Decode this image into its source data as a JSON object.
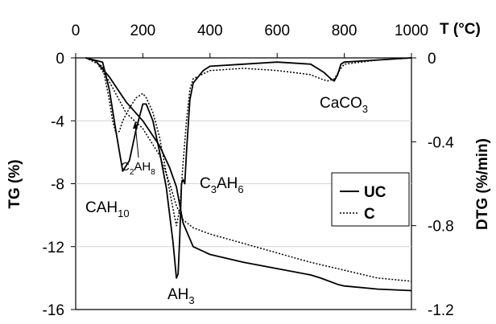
{
  "chart_data": {
    "type": "line",
    "title": "",
    "x_axis": {
      "label": "T (°C)",
      "range": [
        0,
        1000
      ],
      "ticks": [
        "0",
        "200",
        "400",
        "600",
        "800",
        "1000"
      ],
      "position": "top"
    },
    "y_left": {
      "label": "TG (%)",
      "range": [
        -16,
        0
      ],
      "ticks": [
        "0",
        "-4",
        "-8",
        "-12",
        "-16"
      ]
    },
    "y_right": {
      "label": "DTG (%/min)",
      "range": [
        -1.2,
        0
      ],
      "ticks": [
        "0",
        "-0.4",
        "-0.8",
        "-1.2"
      ]
    },
    "grid": "horizontal",
    "legend": {
      "placement": "right",
      "entries": [
        {
          "label": "UC",
          "style": "solid"
        },
        {
          "label": "C",
          "style": "dotted"
        }
      ]
    },
    "annotations": [
      {
        "base": "CAH",
        "sub": "10"
      },
      {
        "base": "C",
        "sub": "2",
        "mid": "AH",
        "sub2": "8"
      },
      {
        "base": "C",
        "sub": "3",
        "mid": "AH",
        "sub2": "6"
      },
      {
        "base": "AH",
        "sub": "3"
      },
      {
        "base": "CaCO",
        "sub": "3"
      }
    ],
    "series": [
      {
        "name": "UC",
        "kind": "TG",
        "axis": "left",
        "style": "solid",
        "x": [
          30,
          60,
          100,
          150,
          200,
          250,
          280,
          300,
          320,
          350,
          400,
          500,
          600,
          700,
          730,
          780,
          800,
          900,
          1000
        ],
        "y": [
          0,
          -0.2,
          -1.2,
          -2.8,
          -4.0,
          -5.6,
          -7.0,
          -8.2,
          -10.5,
          -12.0,
          -12.5,
          -13.0,
          -13.4,
          -13.8,
          -14.0,
          -14.4,
          -14.5,
          -14.7,
          -14.8
        ]
      },
      {
        "name": "UC",
        "kind": "DTG",
        "axis": "right",
        "style": "solid",
        "x": [
          30,
          80,
          100,
          120,
          140,
          160,
          180,
          200,
          210,
          230,
          250,
          270,
          290,
          300,
          305,
          310,
          315,
          320,
          325,
          330,
          340,
          350,
          380,
          400,
          500,
          600,
          700,
          720,
          740,
          760,
          770,
          780,
          790,
          800,
          900,
          1000
        ],
        "y": [
          0,
          -0.02,
          -0.15,
          -0.35,
          -0.54,
          -0.49,
          -0.34,
          -0.22,
          -0.22,
          -0.3,
          -0.45,
          -0.62,
          -0.88,
          -1.05,
          -1.03,
          -0.85,
          -0.6,
          -0.58,
          -0.6,
          -0.45,
          -0.2,
          -0.12,
          -0.06,
          -0.04,
          -0.03,
          -0.02,
          -0.03,
          -0.05,
          -0.07,
          -0.1,
          -0.11,
          -0.08,
          -0.03,
          -0.02,
          -0.01,
          0
        ]
      },
      {
        "name": "C",
        "kind": "TG",
        "axis": "left",
        "style": "dotted",
        "x": [
          30,
          60,
          100,
          150,
          200,
          250,
          280,
          300,
          320,
          350,
          400,
          500,
          600,
          700,
          800,
          900,
          1000
        ],
        "y": [
          0,
          -0.2,
          -1.5,
          -3.5,
          -4.5,
          -6.2,
          -8.0,
          -9.4,
          -10.3,
          -10.8,
          -11.2,
          -11.8,
          -12.4,
          -13.0,
          -13.5,
          -14.0,
          -14.2
        ]
      },
      {
        "name": "C",
        "kind": "DTG",
        "axis": "right",
        "style": "dotted",
        "x": [
          30,
          80,
          100,
          110,
          120,
          130,
          140,
          160,
          180,
          200,
          210,
          230,
          250,
          270,
          290,
          300,
          310,
          320,
          330,
          340,
          350,
          400,
          500,
          600,
          700,
          730,
          750,
          770,
          790,
          800,
          850,
          900,
          1000
        ],
        "y": [
          0,
          -0.04,
          -0.2,
          -0.3,
          -0.36,
          -0.35,
          -0.3,
          -0.24,
          -0.19,
          -0.17,
          -0.19,
          -0.26,
          -0.38,
          -0.55,
          -0.72,
          -0.8,
          -0.72,
          -0.5,
          -0.3,
          -0.15,
          -0.1,
          -0.06,
          -0.05,
          -0.06,
          -0.08,
          -0.1,
          -0.11,
          -0.1,
          -0.05,
          -0.03,
          -0.02,
          -0.01,
          0
        ]
      }
    ]
  }
}
